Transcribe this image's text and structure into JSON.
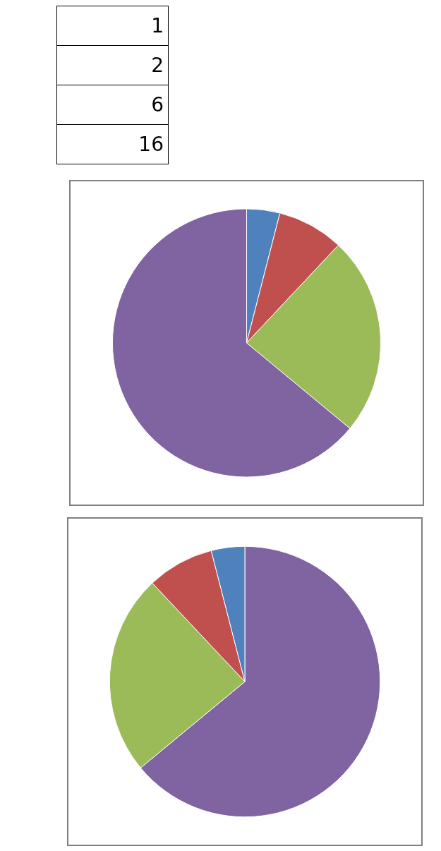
{
  "chart_data": [
    {
      "type": "pie",
      "categories": [
        null,
        null,
        null,
        null
      ],
      "values": [
        4,
        8,
        24,
        64
      ],
      "colors": [
        "#4f81bd",
        "#c0504d",
        "#9bbb59",
        "#8064a2"
      ],
      "annotations": [
        "1",
        "2",
        "6",
        "16"
      ]
    },
    {
      "type": "pie",
      "categories": [
        null,
        null,
        null,
        null
      ],
      "values": [
        64,
        24,
        8,
        4
      ],
      "colors": [
        "#8064a2",
        "#9bbb59",
        "#c0504d",
        "#4f81bd"
      ]
    }
  ]
}
